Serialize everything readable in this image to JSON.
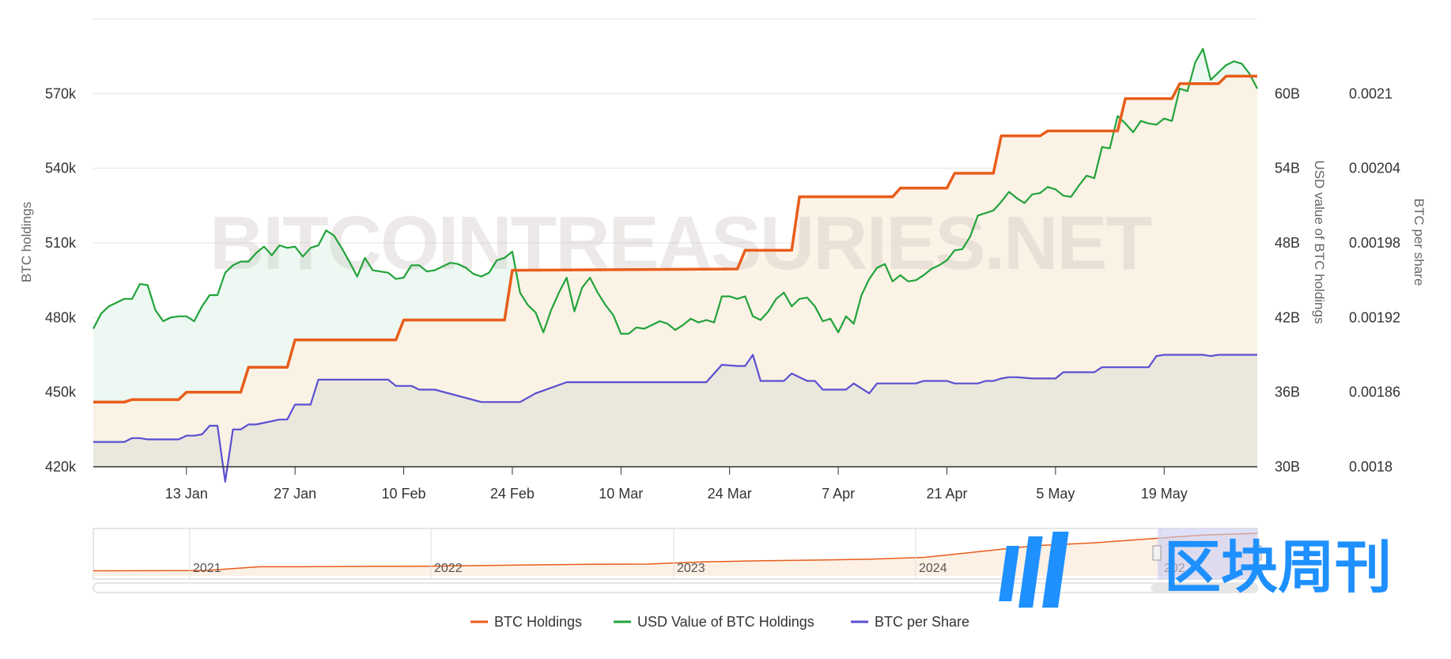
{
  "watermark": "BITCOINTREASURIES.NET",
  "logo_text": "区块周刊",
  "colors": {
    "btc_holdings": "#e85d1b",
    "usd_value": "#22a33a",
    "btc_per_share": "#5a4fd1",
    "grid": "#e3e3e3",
    "area_green": "#eaf7f0",
    "area_orange": "#fbf1e3",
    "area_grey": "#e8e6dc",
    "navigator_fill": "#fdf1e5",
    "navigator_mask": "#c8cdf2",
    "logo": "#1e90ff"
  },
  "chart_data": {
    "type": "line",
    "title": "",
    "xlabel": "",
    "x_ticks": [
      {
        "label": "13 Jan",
        "day": 13
      },
      {
        "label": "27 Jan",
        "day": 27
      },
      {
        "label": "10 Feb",
        "day": 41
      },
      {
        "label": "24 Feb",
        "day": 55
      },
      {
        "label": "10 Mar",
        "day": 69
      },
      {
        "label": "24 Mar",
        "day": 83
      },
      {
        "label": "7 Apr",
        "day": 97
      },
      {
        "label": "21 Apr",
        "day": 111
      },
      {
        "label": "5 May",
        "day": 125
      },
      {
        "label": "19 May",
        "day": 139
      }
    ],
    "x_range": [
      1,
      151
    ],
    "axes": {
      "left": {
        "title": "BTC holdings",
        "range": [
          420000,
          600000
        ],
        "ticks": [
          {
            "value": 420000,
            "label": "420k"
          },
          {
            "value": 450000,
            "label": "450k"
          },
          {
            "value": 480000,
            "label": "480k"
          },
          {
            "value": 510000,
            "label": "510k"
          },
          {
            "value": 540000,
            "label": "540k"
          },
          {
            "value": 570000,
            "label": "570k"
          }
        ]
      },
      "right1": {
        "title": "USD value of BTC holdings",
        "range": [
          30,
          66
        ],
        "ticks": [
          {
            "value": 30,
            "label": "30B"
          },
          {
            "value": 36,
            "label": "36B"
          },
          {
            "value": 42,
            "label": "42B"
          },
          {
            "value": 48,
            "label": "48B"
          },
          {
            "value": 54,
            "label": "54B"
          },
          {
            "value": 60,
            "label": "60B"
          }
        ]
      },
      "right2": {
        "title": "BTC per share",
        "range": [
          0.0018,
          0.00216
        ],
        "ticks": [
          {
            "value": 0.0018,
            "label": "0.0018"
          },
          {
            "value": 0.00186,
            "label": "0.00186"
          },
          {
            "value": 0.00192,
            "label": "0.00192"
          },
          {
            "value": 0.00198,
            "label": "0.00198"
          },
          {
            "value": 0.00204,
            "label": "0.00204"
          },
          {
            "value": 0.0021,
            "label": "0.0021"
          }
        ]
      }
    },
    "grid": true,
    "legend_position": "bottom-center",
    "series": [
      {
        "name": "BTC Holdings",
        "axis": "left",
        "x": [
          1,
          5,
          6,
          12,
          13,
          20,
          21,
          26,
          27,
          40,
          41,
          54,
          55,
          84,
          85,
          91,
          92,
          104,
          105,
          111,
          112,
          117,
          118,
          123,
          124,
          133,
          134,
          140,
          141,
          146,
          147,
          151
        ],
        "values": [
          446000,
          446000,
          447000,
          447000,
          450000,
          450000,
          460000,
          460000,
          471000,
          471000,
          479000,
          479000,
          499000,
          499500,
          507000,
          507000,
          528500,
          528500,
          532000,
          532000,
          538000,
          538000,
          553000,
          553000,
          555000,
          555000,
          568000,
          568000,
          574000,
          574000,
          577000,
          577000
        ]
      },
      {
        "name": "USD Value of BTC Holdings",
        "axis": "right1",
        "x": [
          1,
          2,
          3,
          4,
          5,
          6,
          7,
          8,
          9,
          10,
          11,
          12,
          13,
          14,
          15,
          16,
          17,
          18,
          19,
          20,
          21,
          22,
          23,
          24,
          25,
          26,
          27,
          28,
          29,
          30,
          31,
          32,
          33,
          34,
          35,
          36,
          37,
          38,
          39,
          40,
          41,
          42,
          43,
          44,
          45,
          46,
          47,
          48,
          49,
          50,
          51,
          52,
          53,
          54,
          55,
          56,
          57,
          58,
          59,
          60,
          61,
          62,
          63,
          64,
          65,
          66,
          67,
          68,
          69,
          70,
          71,
          72,
          73,
          74,
          75,
          76,
          77,
          78,
          79,
          80,
          81,
          82,
          83,
          84,
          85,
          86,
          87,
          88,
          89,
          90,
          91,
          92,
          93,
          94,
          95,
          96,
          97,
          98,
          99,
          100,
          101,
          102,
          103,
          104,
          105,
          106,
          107,
          108,
          109,
          110,
          111,
          112,
          113,
          114,
          115,
          116,
          117,
          118,
          119,
          120,
          121,
          122,
          123,
          124,
          125,
          126,
          127,
          128,
          129,
          130,
          131,
          132,
          133,
          134,
          135,
          136,
          137,
          138,
          139,
          140,
          141,
          142,
          143,
          144,
          145,
          146,
          147,
          148,
          149,
          150,
          151
        ],
        "values": [
          41.1,
          42.3,
          42.9,
          43.2,
          43.5,
          43.5,
          44.7,
          44.6,
          42.6,
          41.7,
          42.0,
          42.1,
          42.1,
          41.7,
          42.9,
          43.8,
          43.8,
          45.6,
          46.2,
          46.5,
          46.5,
          47.2,
          47.7,
          47.0,
          47.8,
          47.6,
          47.7,
          46.9,
          47.6,
          47.8,
          49.0,
          48.6,
          47.6,
          46.5,
          45.3,
          46.8,
          45.8,
          45.7,
          45.6,
          45.1,
          45.2,
          46.2,
          46.2,
          45.7,
          45.8,
          46.1,
          46.4,
          46.3,
          46.0,
          45.5,
          45.3,
          45.6,
          46.6,
          46.8,
          47.3,
          44.0,
          43.0,
          42.4,
          40.8,
          42.6,
          44.0,
          45.2,
          42.5,
          44.4,
          45.2,
          44.0,
          43.0,
          42.2,
          40.7,
          40.7,
          41.2,
          41.1,
          41.4,
          41.7,
          41.5,
          41.0,
          41.4,
          41.9,
          41.6,
          41.8,
          41.6,
          43.7,
          43.7,
          43.5,
          43.7,
          42.1,
          41.8,
          42.5,
          43.5,
          44.0,
          42.9,
          43.5,
          43.6,
          42.9,
          41.7,
          41.9,
          40.8,
          42.1,
          41.5,
          43.8,
          45.1,
          46.0,
          46.3,
          44.9,
          45.4,
          44.9,
          45.0,
          45.4,
          45.9,
          46.2,
          46.6,
          47.4,
          47.5,
          48.5,
          50.2,
          50.4,
          50.6,
          51.3,
          52.1,
          51.6,
          51.2,
          51.9,
          52.0,
          52.5,
          52.3,
          51.8,
          51.7,
          52.6,
          53.4,
          53.2,
          55.7,
          55.6,
          58.2,
          57.6,
          56.9,
          57.8,
          57.6,
          57.5,
          58.0,
          57.8,
          60.4,
          60.2,
          62.5,
          63.6,
          61.1,
          61.7,
          62.3,
          62.6,
          62.4,
          61.6,
          60.4
        ],
        "fill_top": 47.3
      },
      {
        "name": "BTC per Share",
        "axis": "right2",
        "x": [
          1,
          5,
          6,
          7,
          8,
          12,
          13,
          14,
          15,
          16,
          17,
          18,
          19,
          20,
          21,
          22,
          25,
          26,
          27,
          28,
          29,
          30,
          38,
          39,
          40,
          41,
          42,
          43,
          44,
          45,
          51,
          52,
          53,
          54,
          55,
          56,
          58,
          62,
          80,
          82,
          84,
          85,
          86,
          87,
          88,
          89,
          90,
          91,
          93,
          94,
          95,
          98,
          99,
          101,
          102,
          103,
          104,
          105,
          106,
          107,
          108,
          111,
          112,
          113,
          114,
          115,
          116,
          117,
          118,
          119,
          120,
          122,
          123,
          124,
          125,
          126,
          128,
          130,
          131,
          135,
          136,
          137,
          138,
          139,
          140,
          141,
          142,
          143,
          144,
          145,
          146,
          147,
          148,
          149,
          150,
          151
        ],
        "values": [
          0.00182,
          0.00182,
          0.001823,
          0.001823,
          0.001822,
          0.001822,
          0.001825,
          0.001825,
          0.001826,
          0.001833,
          0.001833,
          0.001788,
          0.00183,
          0.00183,
          0.001834,
          0.001834,
          0.001838,
          0.001838,
          0.00185,
          0.00185,
          0.00185,
          0.00187,
          0.00187,
          0.00187,
          0.001865,
          0.001865,
          0.001865,
          0.001862,
          0.001862,
          0.001862,
          0.001852,
          0.001852,
          0.001852,
          0.001852,
          0.001852,
          0.001852,
          0.001859,
          0.001868,
          0.001868,
          0.001882,
          0.001881,
          0.001881,
          0.00189,
          0.001869,
          0.001869,
          0.001869,
          0.001869,
          0.001875,
          0.001869,
          0.001869,
          0.001862,
          0.001862,
          0.001867,
          0.001859,
          0.001867,
          0.001867,
          0.001867,
          0.001867,
          0.001867,
          0.001867,
          0.001869,
          0.001869,
          0.001867,
          0.001867,
          0.001867,
          0.001867,
          0.001869,
          0.001869,
          0.001871,
          0.001872,
          0.001872,
          0.001871,
          0.001871,
          0.001871,
          0.001871,
          0.001876,
          0.001876,
          0.001876,
          0.00188,
          0.00188,
          0.00188,
          0.00188,
          0.001889,
          0.00189,
          0.00189,
          0.00189,
          0.00189,
          0.00189,
          0.00189,
          0.001889,
          0.00189,
          0.00189,
          0.00189,
          0.00189,
          0.00189,
          0.00189
        ]
      }
    ],
    "navigator": {
      "years": [
        "2021",
        "2022",
        "2023",
        "2024",
        "202"
      ],
      "values": [
        70000,
        71000,
        72000,
        124000,
        125000,
        130000,
        131000,
        140000,
        150000,
        158000,
        161000,
        190000,
        205000,
        214000,
        226000,
        252000,
        331000,
        410000,
        446000,
        499000,
        553000,
        577000
      ]
    }
  }
}
